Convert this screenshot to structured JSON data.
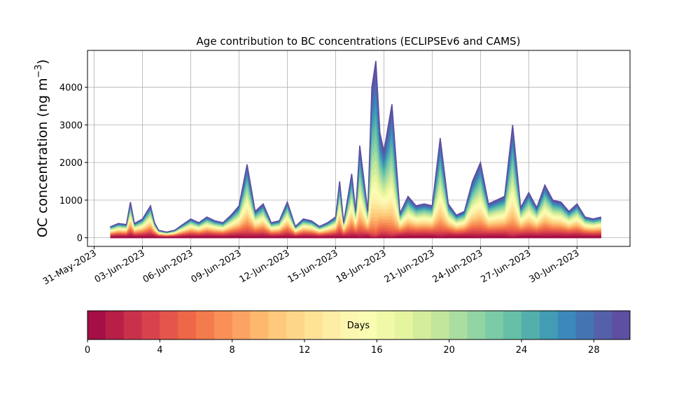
{
  "chart_data": {
    "type": "area",
    "title": "Age contribution to BC concentrations (ECLIPSEv6 and CAMS)",
    "ylabel_main": "OC concentration (ng m",
    "ylabel_unit_exponent": "−3",
    "ylabel_close": ")",
    "xlabel": "",
    "x_axis": "date",
    "xlim": [
      "2023-05-30T14:00",
      "2023-07-03T07:00"
    ],
    "ylim": [
      -230,
      4980
    ],
    "xticks": [
      "31-May-2023",
      "03-Jun-2023",
      "06-Jun-2023",
      "09-Jun-2023",
      "12-Jun-2023",
      "15-Jun-2023",
      "18-Jun-2023",
      "21-Jun-2023",
      "24-Jun-2023",
      "27-Jun-2023",
      "30-Jun-2023"
    ],
    "xtick_dates": [
      "2023-05-31",
      "2023-06-03",
      "2023-06-06",
      "2023-06-09",
      "2023-06-12",
      "2023-06-15",
      "2023-06-18",
      "2023-06-21",
      "2023-06-24",
      "2023-06-27",
      "2023-06-30"
    ],
    "yticks": [
      "0",
      "1000",
      "2000",
      "3000",
      "4000"
    ],
    "ytick_values": [
      0,
      1000,
      2000,
      3000,
      4000
    ],
    "grid": true,
    "series_description": "Stacked area by age band (days 0–30); values are the total (top of stack) concentration",
    "x": [
      "2023-06-01T00:00",
      "2023-06-01T12:00",
      "2023-06-02T00:00",
      "2023-06-02T06:00",
      "2023-06-02T12:00",
      "2023-06-03T00:00",
      "2023-06-03T12:00",
      "2023-06-03T18:00",
      "2023-06-04T00:00",
      "2023-06-04T12:00",
      "2023-06-05T00:00",
      "2023-06-05T12:00",
      "2023-06-06T00:00",
      "2023-06-06T12:00",
      "2023-06-07T00:00",
      "2023-06-07T12:00",
      "2023-06-08T00:00",
      "2023-06-08T12:00",
      "2023-06-09T00:00",
      "2023-06-09T12:00",
      "2023-06-10T00:00",
      "2023-06-10T12:00",
      "2023-06-11T00:00",
      "2023-06-11T12:00",
      "2023-06-12T00:00",
      "2023-06-12T12:00",
      "2023-06-13T00:00",
      "2023-06-13T12:00",
      "2023-06-14T00:00",
      "2023-06-14T12:00",
      "2023-06-15T00:00",
      "2023-06-15T06:00",
      "2023-06-15T12:00",
      "2023-06-16T00:00",
      "2023-06-16T06:00",
      "2023-06-16T12:00",
      "2023-06-17T00:00",
      "2023-06-17T06:00",
      "2023-06-17T12:00",
      "2023-06-17T18:00",
      "2023-06-18T00:00",
      "2023-06-18T12:00",
      "2023-06-19T00:00",
      "2023-06-19T12:00",
      "2023-06-20T00:00",
      "2023-06-20T12:00",
      "2023-06-21T00:00",
      "2023-06-21T12:00",
      "2023-06-22T00:00",
      "2023-06-22T12:00",
      "2023-06-23T00:00",
      "2023-06-23T12:00",
      "2023-06-24T00:00",
      "2023-06-24T12:00",
      "2023-06-25T00:00",
      "2023-06-25T12:00",
      "2023-06-26T00:00",
      "2023-06-26T12:00",
      "2023-06-27T00:00",
      "2023-06-27T12:00",
      "2023-06-28T00:00",
      "2023-06-28T12:00",
      "2023-06-29T00:00",
      "2023-06-29T12:00",
      "2023-06-30T00:00",
      "2023-06-30T12:00",
      "2023-07-01T00:00",
      "2023-07-01T12:00"
    ],
    "total": [
      290,
      380,
      350,
      950,
      380,
      500,
      850,
      400,
      200,
      150,
      200,
      350,
      500,
      400,
      550,
      450,
      400,
      600,
      850,
      1950,
      700,
      900,
      400,
      450,
      950,
      300,
      500,
      450,
      300,
      400,
      550,
      1500,
      400,
      1700,
      700,
      2450,
      700,
      4000,
      4700,
      2800,
      2300,
      3550,
      650,
      1100,
      850,
      900,
      850,
      2650,
      900,
      600,
      700,
      1500,
      2000,
      900,
      1000,
      1100,
      3000,
      800,
      1200,
      800,
      1400,
      1000,
      950,
      700,
      900,
      550,
      500,
      550
    ],
    "colorbar": {
      "label": "Days",
      "min": 0,
      "max": 30,
      "ticks": [
        "0",
        "4",
        "8",
        "12",
        "16",
        "20",
        "24",
        "28"
      ],
      "tick_values": [
        0,
        4,
        8,
        12,
        16,
        20,
        24,
        28
      ],
      "n_bins": 30,
      "colors": [
        "#a50f45",
        "#b71f47",
        "#c9314b",
        "#d8424c",
        "#e4564b",
        "#ee6747",
        "#f47b4b",
        "#f89057",
        "#fba363",
        "#fdb86d",
        "#fec97b",
        "#fed68a",
        "#fee296",
        "#feeda4",
        "#fdf6b0",
        "#fafcb2",
        "#f1f9a8",
        "#e5f49f",
        "#d4ed9b",
        "#c1e69c",
        "#aadea0",
        "#92d4a4",
        "#7bcba6",
        "#66bfa6",
        "#53afab",
        "#419cb4",
        "#3b88bb",
        "#4574b3",
        "#5461aa",
        "#5e4fa2"
      ]
    }
  }
}
